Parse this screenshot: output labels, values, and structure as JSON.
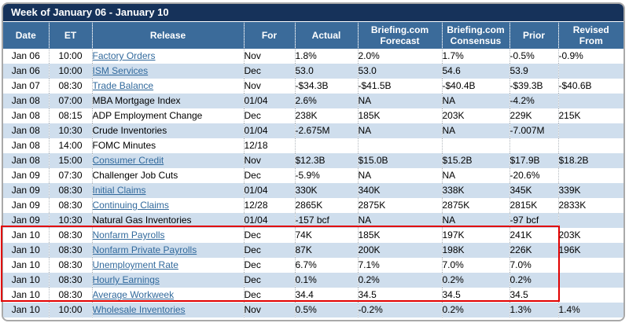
{
  "title": "Week of January 06 - January 10",
  "columns": [
    "Date",
    "ET",
    "Release",
    "For",
    "Actual",
    "Briefing.com\nForecast",
    "Briefing.com\nConsensus",
    "Prior",
    "Revised\nFrom"
  ],
  "rows": [
    {
      "date": "Jan 06",
      "et": "10:00",
      "release": "Factory Orders",
      "link": true,
      "for": "Nov",
      "actual": "1.8%",
      "forecast": "2.0%",
      "consensus": "1.7%",
      "prior": "-0.5%",
      "revised": "-0.9%"
    },
    {
      "date": "Jan 06",
      "et": "10:00",
      "release": "ISM Services",
      "link": true,
      "for": "Dec",
      "actual": "53.0",
      "forecast": "53.0",
      "consensus": "54.6",
      "prior": "53.9",
      "revised": ""
    },
    {
      "date": "Jan 07",
      "et": "08:30",
      "release": "Trade Balance",
      "link": true,
      "for": "Nov",
      "actual": "-$34.3B",
      "forecast": "-$41.5B",
      "consensus": "-$40.4B",
      "prior": "-$39.3B",
      "revised": "-$40.6B"
    },
    {
      "date": "Jan 08",
      "et": "07:00",
      "release": "MBA Mortgage Index",
      "link": false,
      "for": "01/04",
      "actual": "2.6%",
      "forecast": "NA",
      "consensus": "NA",
      "prior": "-4.2%",
      "revised": ""
    },
    {
      "date": "Jan 08",
      "et": "08:15",
      "release": "ADP Employment Change",
      "link": false,
      "for": "Dec",
      "actual": "238K",
      "forecast": "185K",
      "consensus": "203K",
      "prior": "229K",
      "revised": "215K"
    },
    {
      "date": "Jan 08",
      "et": "10:30",
      "release": "Crude Inventories",
      "link": false,
      "for": "01/04",
      "actual": "-2.675M",
      "forecast": "NA",
      "consensus": "NA",
      "prior": "-7.007M",
      "revised": ""
    },
    {
      "date": "Jan 08",
      "et": "14:00",
      "release": "FOMC Minutes",
      "link": false,
      "for": "12/18",
      "actual": "",
      "forecast": "",
      "consensus": "",
      "prior": "",
      "revised": ""
    },
    {
      "date": "Jan 08",
      "et": "15:00",
      "release": "Consumer Credit",
      "link": true,
      "for": "Nov",
      "actual": "$12.3B",
      "forecast": "$15.0B",
      "consensus": "$15.2B",
      "prior": "$17.9B",
      "revised": "$18.2B"
    },
    {
      "date": "Jan 09",
      "et": "07:30",
      "release": "Challenger Job Cuts",
      "link": false,
      "for": "Dec",
      "actual": "-5.9%",
      "forecast": "NA",
      "consensus": "NA",
      "prior": "-20.6%",
      "revised": ""
    },
    {
      "date": "Jan 09",
      "et": "08:30",
      "release": "Initial Claims",
      "link": true,
      "for": "01/04",
      "actual": "330K",
      "forecast": "340K",
      "consensus": "338K",
      "prior": "345K",
      "revised": "339K"
    },
    {
      "date": "Jan 09",
      "et": "08:30",
      "release": "Continuing Claims",
      "link": true,
      "for": "12/28",
      "actual": "2865K",
      "forecast": "2875K",
      "consensus": "2875K",
      "prior": "2815K",
      "revised": "2833K"
    },
    {
      "date": "Jan 09",
      "et": "10:30",
      "release": "Natural Gas Inventories",
      "link": false,
      "for": "01/04",
      "actual": "-157 bcf",
      "forecast": "NA",
      "consensus": "NA",
      "prior": "-97 bcf",
      "revised": ""
    },
    {
      "date": "Jan 10",
      "et": "08:30",
      "release": "Nonfarm Payrolls",
      "link": true,
      "for": "Dec",
      "actual": "74K",
      "forecast": "185K",
      "consensus": "197K",
      "prior": "241K",
      "revised": "203K"
    },
    {
      "date": "Jan 10",
      "et": "08:30",
      "release": "Nonfarm Private Payrolls",
      "link": true,
      "for": "Dec",
      "actual": "87K",
      "forecast": "200K",
      "consensus": "198K",
      "prior": "226K",
      "revised": "196K"
    },
    {
      "date": "Jan 10",
      "et": "08:30",
      "release": "Unemployment Rate",
      "link": true,
      "for": "Dec",
      "actual": "6.7%",
      "forecast": "7.1%",
      "consensus": "7.0%",
      "prior": "7.0%",
      "revised": ""
    },
    {
      "date": "Jan 10",
      "et": "08:30",
      "release": "Hourly Earnings",
      "link": true,
      "for": "Dec",
      "actual": "0.1%",
      "forecast": "0.2%",
      "consensus": "0.2%",
      "prior": "0.2%",
      "revised": ""
    },
    {
      "date": "Jan 10",
      "et": "08:30",
      "release": "Average Workweek",
      "link": true,
      "for": "Dec",
      "actual": "34.4",
      "forecast": "34.5",
      "consensus": "34.5",
      "prior": "34.5",
      "revised": ""
    },
    {
      "date": "Jan 10",
      "et": "10:00",
      "release": "Wholesale Inventories",
      "link": true,
      "for": "Nov",
      "actual": "0.5%",
      "forecast": "-0.2%",
      "consensus": "0.2%",
      "prior": "1.3%",
      "revised": "1.4%"
    }
  ],
  "highlight": {
    "enclosed_releases": [
      "Nonfarm Payrolls",
      "Nonfarm Private Payrolls",
      "Unemployment Rate",
      "Hourly Earnings",
      "Average Workweek"
    ],
    "first_row_index": 12,
    "last_row_index": 16
  },
  "colors": {
    "title_bar_bg": "#16325a",
    "header_bg": "#3b6b9a",
    "row_bg": "#ffffff",
    "row_alt_bg": "#cfdeed",
    "link": "#31699c",
    "text": "#000000",
    "frame_border": "#a9a9a9",
    "highlight_border": "#e10000"
  }
}
